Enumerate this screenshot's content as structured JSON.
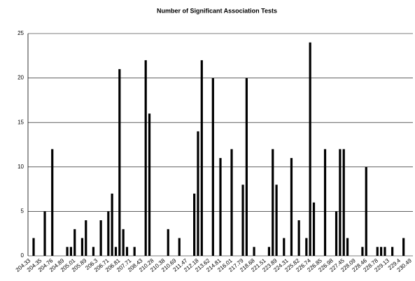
{
  "chart_data": {
    "type": "bar",
    "title": "Number of Significant Association Tests",
    "categories": [
      "204.33",
      null,
      null,
      "204.35",
      null,
      null,
      "204.76",
      null,
      null,
      "204.89",
      null,
      null,
      "205.01",
      null,
      null,
      "205.89",
      null,
      null,
      "206.3",
      null,
      null,
      "206.71",
      null,
      null,
      "206.81",
      null,
      null,
      "207.71",
      null,
      null,
      "208.43",
      null,
      null,
      "210.28",
      null,
      null,
      "210.38",
      null,
      null,
      "210.69",
      null,
      null,
      "211.47",
      null,
      null,
      "212.18",
      null,
      null,
      "213.62",
      null,
      null,
      "214.81",
      null,
      null,
      "216.01",
      null,
      null,
      "217.79",
      null,
      null,
      "218.68",
      null,
      null,
      "221.51",
      null,
      null,
      "223.89",
      null,
      null,
      "224.31",
      null,
      null,
      "225.82",
      null,
      null,
      "226.74",
      null,
      null,
      "226.85",
      null,
      null,
      "226.98",
      null,
      null,
      "227.45",
      null,
      null,
      "228.09",
      null,
      null,
      "228.46",
      null,
      null,
      "228.78",
      null,
      null,
      "229.13",
      null,
      null,
      "229.4",
      null,
      null,
      "230.49"
    ],
    "values": [
      0,
      2,
      0,
      0,
      5,
      0,
      12,
      0,
      0,
      0,
      1,
      1,
      3,
      0,
      2,
      4,
      0,
      1,
      0,
      4,
      0,
      5,
      7,
      1,
      21,
      3,
      1,
      0,
      1,
      0,
      0,
      22,
      16,
      0,
      0,
      0,
      0,
      3,
      0,
      0,
      2,
      0,
      0,
      0,
      7,
      14,
      22,
      0,
      0,
      20,
      0,
      11,
      0,
      0,
      12,
      0,
      0,
      8,
      20,
      0,
      1,
      0,
      0,
      0,
      1,
      12,
      8,
      0,
      2,
      0,
      11,
      0,
      4,
      0,
      2,
      24,
      6,
      0,
      0,
      12,
      0,
      0,
      5,
      12,
      12,
      2,
      0,
      0,
      0,
      1,
      10,
      0,
      0,
      1,
      1,
      1,
      0,
      1,
      0,
      0,
      2,
      0,
      0
    ],
    "color": "#000000",
    "ylim": [
      0,
      25
    ],
    "yticks": [
      0,
      5,
      10,
      15,
      20,
      25
    ],
    "grid": true
  }
}
